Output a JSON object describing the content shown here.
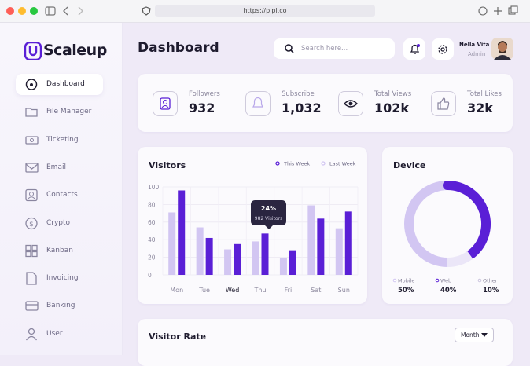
{
  "browser": {
    "url": "https://pipl.co"
  },
  "sidebar": {
    "brand": "Scaleup",
    "menu": [
      "Dashboard",
      "File Manager",
      "Ticketing",
      "Email",
      "Contacts",
      "Crypto",
      "Kanban",
      "Invoicing",
      "Banking",
      "User"
    ]
  },
  "header": {
    "title": "Dashboard",
    "search_placeholder": "Search here...",
    "user": {
      "name": "Nella Vita",
      "role": "Admin"
    }
  },
  "stats": [
    {
      "label": "Followers",
      "value": "932"
    },
    {
      "label": "Subscribe",
      "value": "1,032"
    },
    {
      "label": "Total Views",
      "value": "102k"
    },
    {
      "label": "Total Likes",
      "value": "32k"
    }
  ],
  "chart_data": [
    {
      "type": "bar",
      "title": "Visitors",
      "categories": [
        "Mon",
        "Tue",
        "Wed",
        "Thu",
        "Fri",
        "Sat",
        "Sun"
      ],
      "series": [
        {
          "name": "This Week",
          "color": "#5a1fd6",
          "values": [
            96,
            42,
            35,
            47,
            28,
            64,
            72
          ]
        },
        {
          "name": "Last Week",
          "color": "#d2c6f2",
          "values": [
            71,
            54,
            29,
            38,
            19,
            79,
            53
          ]
        }
      ],
      "ylim": [
        0,
        100
      ],
      "yticks": [
        0,
        20,
        40,
        60,
        80,
        100
      ],
      "grid": true,
      "tooltip": {
        "title": "24%",
        "text": "982 Visitors"
      }
    },
    {
      "type": "pie",
      "title": "Device",
      "categories": [
        "Mobile",
        "Web",
        "Other"
      ],
      "values": [
        50,
        40,
        10
      ],
      "value_labels": [
        "50%",
        "40%",
        "10%"
      ],
      "colors": [
        "#d2c6f2",
        "#5a1fd6",
        "#ebe6f8"
      ]
    }
  ],
  "visitor_rate": {
    "title": "Visitor Rate",
    "filter": "Month"
  }
}
